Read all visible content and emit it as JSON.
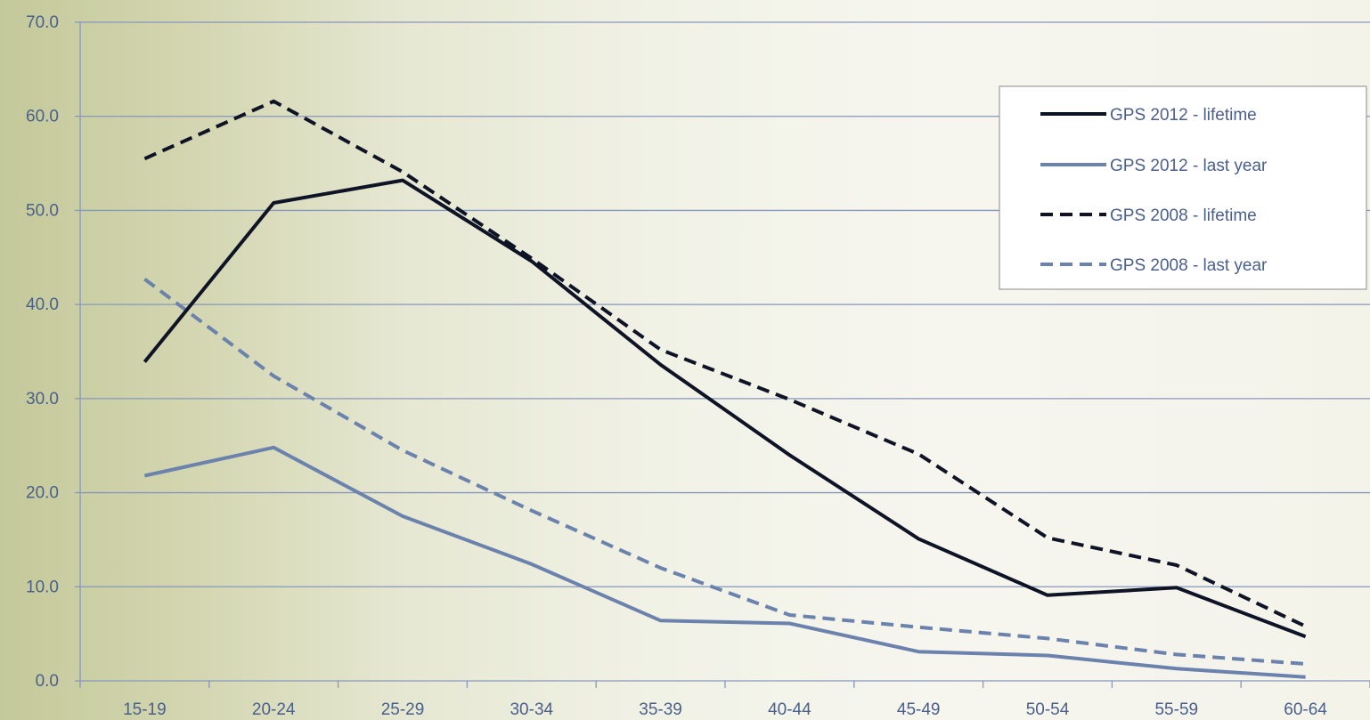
{
  "chart_data": {
    "type": "line",
    "title": "",
    "xlabel": "",
    "ylabel": "",
    "categories": [
      "15-19",
      "20-24",
      "25-29",
      "30-34",
      "35-39",
      "40-44",
      "45-49",
      "50-54",
      "55-59",
      "60-64"
    ],
    "ylim": [
      0,
      70
    ],
    "yticks": [
      "0.0",
      "10.0",
      "20.0",
      "30.0",
      "40.0",
      "50.0",
      "60.0",
      "70.0"
    ],
    "grid": true,
    "legend_position": "top-right",
    "series": [
      {
        "name": "GPS 2012 - lifetime",
        "color": "#0f1326",
        "dash": "solid",
        "values": [
          33.9,
          50.8,
          53.2,
          44.6,
          33.6,
          24.0,
          15.1,
          9.1,
          9.9,
          4.7
        ]
      },
      {
        "name": "GPS 2012 - last year",
        "color": "#6b82ad",
        "dash": "solid",
        "values": [
          21.8,
          24.8,
          17.5,
          12.4,
          6.4,
          6.1,
          3.1,
          2.7,
          1.3,
          0.4
        ]
      },
      {
        "name": "GPS 2008 - lifetime",
        "color": "#0f1326",
        "dash": "dashed",
        "values": [
          55.5,
          61.6,
          54.1,
          44.9,
          35.2,
          29.9,
          24.1,
          15.2,
          12.3,
          5.8
        ]
      },
      {
        "name": "GPS 2008 - last year",
        "color": "#6b82ad",
        "dash": "dashed",
        "values": [
          42.7,
          32.4,
          24.5,
          18.1,
          12.0,
          7.0,
          5.7,
          4.5,
          2.8,
          1.8
        ]
      }
    ]
  }
}
